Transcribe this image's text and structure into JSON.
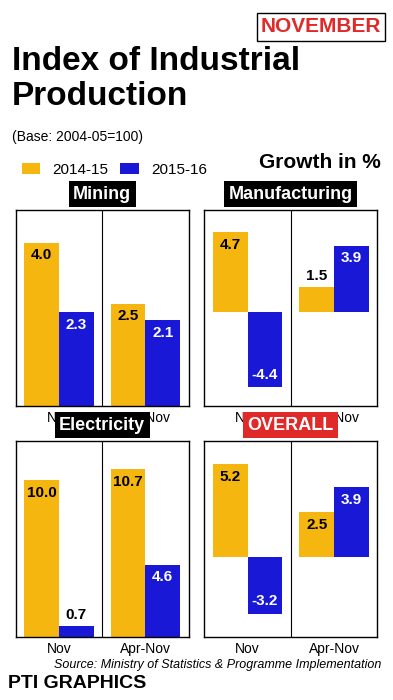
{
  "title": "Index of Industrial Production",
  "subtitle": "(Base: 2004-05=100)",
  "month": "NOVEMBER",
  "unit": "Growth in %",
  "source": "Source: Ministry of Statistics & Programme Implementation",
  "credit": "PTI GRAPHICS",
  "chart_data": [
    {
      "type": "bar",
      "title": "Mining",
      "categories": [
        "Nov",
        "Apr-Nov"
      ],
      "series": [
        {
          "name": "2014-15",
          "color": "#f5b60f",
          "values": [
            4.0,
            2.5
          ]
        },
        {
          "name": "2015-16",
          "color": "#1818d6",
          "values": [
            2.3,
            2.1
          ]
        }
      ],
      "ylim": [
        0,
        4.8
      ],
      "data_labels": true,
      "tick_labels": "x"
    },
    {
      "type": "bar",
      "title": "Manufacturing",
      "categories": [
        "Nov",
        "Apr-Nov"
      ],
      "series": [
        {
          "name": "2014-15",
          "color": "#f5b60f",
          "values": [
            4.7,
            1.5
          ]
        },
        {
          "name": "2015-16",
          "color": "#1818d6",
          "values": [
            -4.4,
            3.9
          ]
        }
      ],
      "ylim": [
        -5.5,
        6
      ],
      "data_labels": true,
      "tick_labels": "x"
    },
    {
      "type": "bar",
      "title": "Electricity",
      "categories": [
        "Nov",
        "Apr-Nov"
      ],
      "series": [
        {
          "name": "2014-15",
          "color": "#f5b60f",
          "values": [
            10.0,
            10.7
          ]
        },
        {
          "name": "2015-16",
          "color": "#1818d6",
          "values": [
            0.7,
            4.6
          ]
        }
      ],
      "ylim": [
        0,
        12.5
      ],
      "data_labels": true,
      "tick_labels": "x"
    },
    {
      "type": "bar",
      "title": "OVERALL",
      "categories": [
        "Nov",
        "Apr-Nov"
      ],
      "series": [
        {
          "name": "2014-15",
          "color": "#f5b60f",
          "values": [
            5.2,
            2.5
          ]
        },
        {
          "name": "2015-16",
          "color": "#1818d6",
          "values": [
            -3.2,
            3.9
          ]
        }
      ],
      "ylim": [
        -4.5,
        6.5
      ],
      "data_labels": true,
      "tick_labels": "x"
    }
  ]
}
